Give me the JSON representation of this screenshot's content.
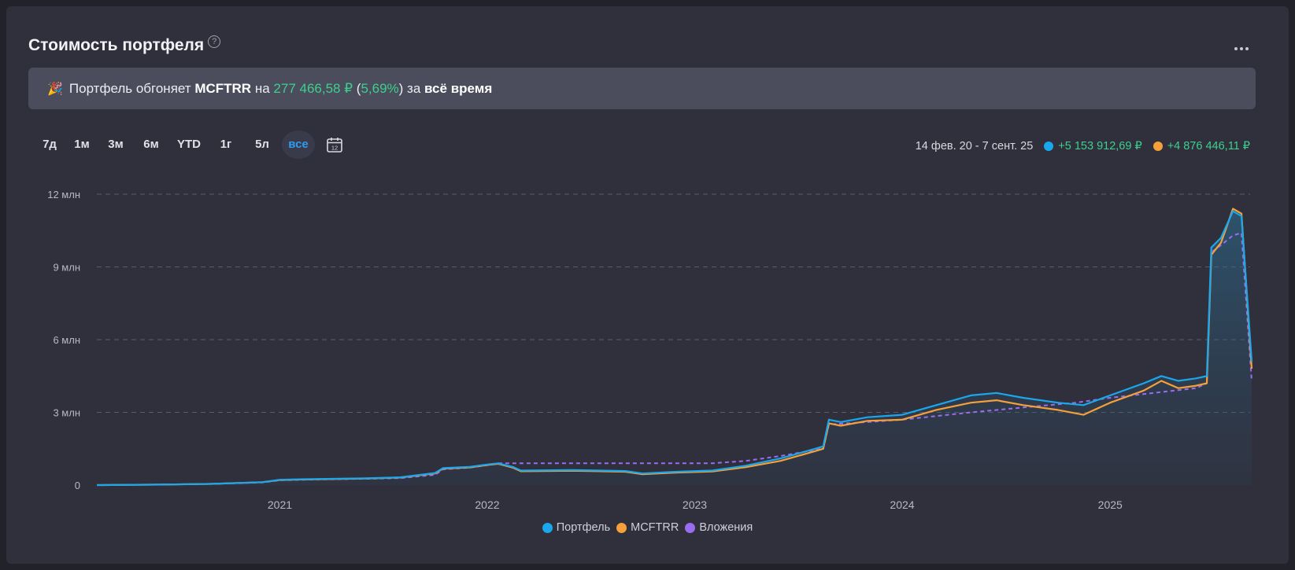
{
  "header": {
    "title": "Стоимость портфеля",
    "help_glyph": "?",
    "more_icon": "more-horizontal-icon"
  },
  "banner": {
    "emoji": "🎉",
    "prefix": "Портфель обгоняет",
    "benchmark": "MCFTRR",
    "mid": "на",
    "amount": "277 466,58 ₽",
    "pct_open": "(",
    "pct": "5,69%",
    "pct_close": ")",
    "suffix": "за",
    "period": "всё время"
  },
  "periods": {
    "items": [
      {
        "label": "7д",
        "active": false
      },
      {
        "label": "1м",
        "active": false
      },
      {
        "label": "3м",
        "active": false
      },
      {
        "label": "6м",
        "active": false
      },
      {
        "label": "YTD",
        "active": false
      },
      {
        "label": "1г",
        "active": false
      },
      {
        "label": "5л",
        "active": false
      },
      {
        "label": "все",
        "active": true
      }
    ],
    "calendar_icon": "calendar-icon",
    "calendar_day": "12"
  },
  "range": {
    "label": "14 фев. 20 - 7 сент. 25",
    "portfolio_gain": "+5 153 912,69 ₽",
    "benchmark_gain": "+4 876 446,11 ₽"
  },
  "colors": {
    "portfolio": "#1aa7ec",
    "benchmark": "#f5a03a",
    "investments": "#9a6cf0",
    "gain": "#3ecf8e",
    "accent": "#2f9bf0"
  },
  "chart_data": {
    "type": "line",
    "x_axis": {
      "type": "date",
      "ticks": [
        "2021",
        "2022",
        "2023",
        "2024",
        "2025"
      ],
      "range": [
        "2020-02-14",
        "2025-09-07"
      ]
    },
    "y_axis": {
      "tick_labels": [
        "0",
        "3 млн",
        "6 млн",
        "9 млн",
        "12 млн"
      ],
      "ticks": [
        0,
        3000000,
        6000000,
        9000000,
        12000000
      ],
      "ylim": [
        0,
        12000000
      ]
    },
    "grid": "horizontal dashed",
    "legend": {
      "position": "bottom-center"
    },
    "series": [
      {
        "name": "Портфель",
        "color": "#1aa7ec",
        "points": [
          [
            "2020-02-14",
            0
          ],
          [
            "2020-06-01",
            20000
          ],
          [
            "2020-09-01",
            50000
          ],
          [
            "2020-12-01",
            120000
          ],
          [
            "2021-01-01",
            220000
          ],
          [
            "2021-03-01",
            250000
          ],
          [
            "2021-06-01",
            280000
          ],
          [
            "2021-08-01",
            320000
          ],
          [
            "2021-10-01",
            500000
          ],
          [
            "2021-10-15",
            700000
          ],
          [
            "2021-12-01",
            750000
          ],
          [
            "2022-01-01",
            850000
          ],
          [
            "2022-01-20",
            900000
          ],
          [
            "2022-02-15",
            750000
          ],
          [
            "2022-03-01",
            600000
          ],
          [
            "2022-06-01",
            620000
          ],
          [
            "2022-09-01",
            580000
          ],
          [
            "2022-10-01",
            480000
          ],
          [
            "2022-12-01",
            550000
          ],
          [
            "2023-02-01",
            600000
          ],
          [
            "2023-04-01",
            800000
          ],
          [
            "2023-06-01",
            1100000
          ],
          [
            "2023-08-01",
            1500000
          ],
          [
            "2023-08-15",
            1600000
          ],
          [
            "2023-08-25",
            2700000
          ],
          [
            "2023-09-15",
            2600000
          ],
          [
            "2023-11-01",
            2800000
          ],
          [
            "2024-01-01",
            2900000
          ],
          [
            "2024-03-01",
            3300000
          ],
          [
            "2024-05-01",
            3700000
          ],
          [
            "2024-06-15",
            3800000
          ],
          [
            "2024-08-01",
            3600000
          ],
          [
            "2024-10-01",
            3400000
          ],
          [
            "2024-11-15",
            3300000
          ],
          [
            "2025-01-01",
            3700000
          ],
          [
            "2025-03-01",
            4200000
          ],
          [
            "2025-04-01",
            4500000
          ],
          [
            "2025-05-01",
            4300000
          ],
          [
            "2025-06-01",
            4400000
          ],
          [
            "2025-06-20",
            4500000
          ],
          [
            "2025-06-28",
            9800000
          ],
          [
            "2025-07-15",
            10200000
          ],
          [
            "2025-08-05",
            11300000
          ],
          [
            "2025-08-20",
            11100000
          ],
          [
            "2025-09-07",
            5100000
          ]
        ]
      },
      {
        "name": "MCFTRR",
        "color": "#f5a03a",
        "points": [
          [
            "2020-02-14",
            0
          ],
          [
            "2020-06-01",
            20000
          ],
          [
            "2020-09-01",
            50000
          ],
          [
            "2020-12-01",
            120000
          ],
          [
            "2021-01-01",
            210000
          ],
          [
            "2021-03-01",
            240000
          ],
          [
            "2021-06-01",
            270000
          ],
          [
            "2021-08-01",
            310000
          ],
          [
            "2021-10-01",
            480000
          ],
          [
            "2021-10-15",
            680000
          ],
          [
            "2021-12-01",
            730000
          ],
          [
            "2022-01-01",
            830000
          ],
          [
            "2022-01-20",
            880000
          ],
          [
            "2022-02-15",
            720000
          ],
          [
            "2022-03-01",
            570000
          ],
          [
            "2022-06-01",
            590000
          ],
          [
            "2022-09-01",
            550000
          ],
          [
            "2022-10-01",
            450000
          ],
          [
            "2022-12-01",
            520000
          ],
          [
            "2023-02-01",
            560000
          ],
          [
            "2023-04-01",
            740000
          ],
          [
            "2023-06-01",
            1000000
          ],
          [
            "2023-08-01",
            1400000
          ],
          [
            "2023-08-15",
            1500000
          ],
          [
            "2023-08-25",
            2550000
          ],
          [
            "2023-09-15",
            2450000
          ],
          [
            "2023-11-01",
            2650000
          ],
          [
            "2024-01-01",
            2700000
          ],
          [
            "2024-03-01",
            3100000
          ],
          [
            "2024-05-01",
            3400000
          ],
          [
            "2024-06-15",
            3500000
          ],
          [
            "2024-08-01",
            3300000
          ],
          [
            "2024-10-01",
            3100000
          ],
          [
            "2024-11-15",
            2900000
          ],
          [
            "2025-01-01",
            3400000
          ],
          [
            "2025-03-01",
            3900000
          ],
          [
            "2025-04-01",
            4300000
          ],
          [
            "2025-05-01",
            4000000
          ],
          [
            "2025-06-01",
            4100000
          ],
          [
            "2025-06-20",
            4200000
          ],
          [
            "2025-06-28",
            9500000
          ],
          [
            "2025-07-15",
            10000000
          ],
          [
            "2025-08-05",
            11400000
          ],
          [
            "2025-08-20",
            11200000
          ],
          [
            "2025-09-07",
            4800000
          ]
        ]
      },
      {
        "name": "Вложения",
        "color": "#9a6cf0",
        "points": [
          [
            "2020-02-14",
            0
          ],
          [
            "2020-06-01",
            20000
          ],
          [
            "2020-09-01",
            50000
          ],
          [
            "2020-12-01",
            110000
          ],
          [
            "2021-01-01",
            200000
          ],
          [
            "2021-03-01",
            230000
          ],
          [
            "2021-06-01",
            260000
          ],
          [
            "2021-08-01",
            290000
          ],
          [
            "2021-10-01",
            420000
          ],
          [
            "2021-10-15",
            650000
          ],
          [
            "2021-12-01",
            720000
          ],
          [
            "2022-01-01",
            820000
          ],
          [
            "2022-01-20",
            900000
          ],
          [
            "2022-06-01",
            900000
          ],
          [
            "2022-12-01",
            900000
          ],
          [
            "2023-02-01",
            900000
          ],
          [
            "2023-04-01",
            1000000
          ],
          [
            "2023-06-01",
            1200000
          ],
          [
            "2023-08-01",
            1450000
          ],
          [
            "2023-08-15",
            1500000
          ],
          [
            "2023-08-25",
            2500000
          ],
          [
            "2023-11-01",
            2600000
          ],
          [
            "2024-01-01",
            2700000
          ],
          [
            "2024-05-01",
            3000000
          ],
          [
            "2024-08-01",
            3200000
          ],
          [
            "2024-11-01",
            3400000
          ],
          [
            "2025-01-01",
            3600000
          ],
          [
            "2025-06-01",
            4000000
          ],
          [
            "2025-06-20",
            4200000
          ],
          [
            "2025-06-28",
            9600000
          ],
          [
            "2025-07-15",
            9900000
          ],
          [
            "2025-08-05",
            10300000
          ],
          [
            "2025-08-20",
            10400000
          ],
          [
            "2025-09-07",
            4300000
          ]
        ]
      }
    ]
  }
}
